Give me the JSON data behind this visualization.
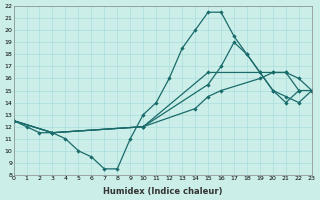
{
  "xlabel": "Humidex (Indice chaleur)",
  "ylabel": "",
  "bg_color": "#cceee8",
  "grid_color": "#aadddd",
  "line_color": "#1a6b6b",
  "xlim": [
    0,
    23
  ],
  "ylim": [
    8,
    22
  ],
  "yticks": [
    8,
    9,
    10,
    11,
    12,
    13,
    14,
    15,
    16,
    17,
    18,
    19,
    20,
    21,
    22
  ],
  "xticks": [
    0,
    1,
    2,
    3,
    4,
    5,
    6,
    7,
    8,
    9,
    10,
    11,
    12,
    13,
    14,
    15,
    16,
    17,
    18,
    19,
    20,
    21,
    22,
    23
  ],
  "series": [
    {
      "x": [
        0,
        1,
        2,
        3,
        4,
        5,
        6,
        7,
        8,
        9,
        10,
        11,
        12,
        13,
        14,
        15,
        16,
        17,
        18,
        19,
        20,
        21,
        22
      ],
      "y": [
        12.5,
        12,
        11.5,
        11.5,
        11,
        10,
        9.5,
        8.5,
        8.5,
        11,
        13,
        14,
        16,
        18.5,
        20,
        21.5,
        21.5,
        19.5,
        18,
        16.5,
        15,
        14,
        15
      ]
    },
    {
      "x": [
        0,
        3,
        10,
        15,
        16,
        17,
        18,
        19,
        20,
        21,
        22,
        23
      ],
      "y": [
        12.5,
        11.5,
        12,
        15.5,
        17,
        19,
        18,
        16.5,
        15,
        14.5,
        14,
        15
      ]
    },
    {
      "x": [
        0,
        3,
        10,
        15,
        20,
        21,
        22,
        23
      ],
      "y": [
        12.5,
        11.5,
        12,
        16.5,
        16.5,
        16.5,
        15,
        15
      ]
    },
    {
      "x": [
        0,
        3,
        10,
        14,
        15,
        16,
        19,
        20,
        21,
        22,
        23
      ],
      "y": [
        12.5,
        11.5,
        12,
        13.5,
        14.5,
        15,
        16,
        16.5,
        16.5,
        16,
        15
      ]
    }
  ]
}
